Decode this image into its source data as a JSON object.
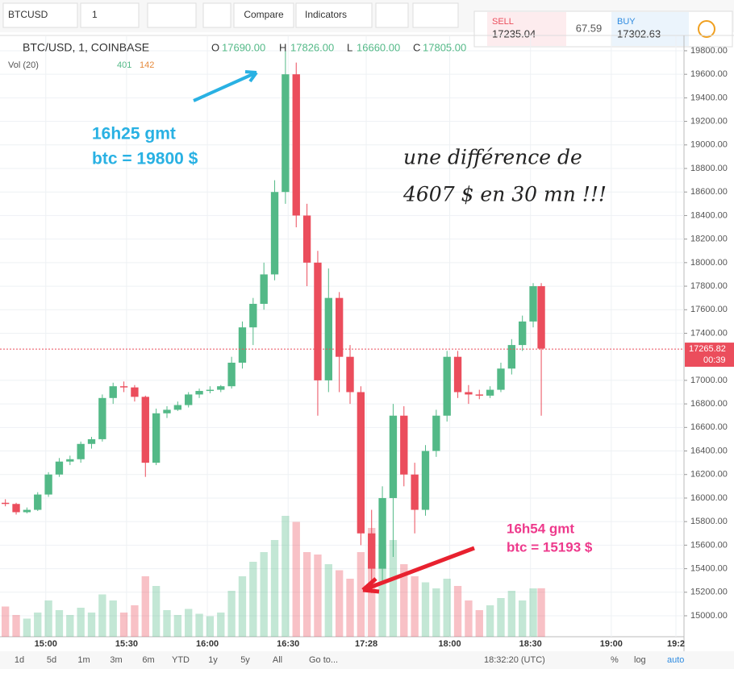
{
  "header": {
    "symbol": "BTCUSD",
    "interval": "1",
    "compare": "Compare",
    "indicators": "Indicators"
  },
  "quote": {
    "sell_label": "SELL",
    "sell": 17235.04,
    "spread": 67.59,
    "buy_label": "BUY",
    "buy": 17302.63
  },
  "legend": {
    "name": "BTC/USD, 1, COINBASE",
    "o": "O",
    "open": "17690.00",
    "h": "H",
    "high": "17826.00",
    "l": "L",
    "low": "16660.00",
    "c": "C",
    "close": "17805.00",
    "vol": "Vol (20)",
    "vol_a": "401",
    "vol_b": "142"
  },
  "annotations": {
    "top_1": "16h25 gmt",
    "top_2": "btc = 19800 $",
    "note_1": "une différence de",
    "note_2": "4607 $ en 30 mn !!!",
    "low_1": "16h54 gmt",
    "low_2": "btc = 15193 $"
  },
  "chart_data": {
    "type": "candlestick",
    "up_color": "#53b987",
    "down_color": "#eb4d5c",
    "grid": true,
    "xlim": [
      883,
      1137
    ],
    "ylim": [
      14822,
      19923
    ],
    "volume_lim": [
      0,
      1100
    ],
    "xticks": [
      {
        "value": 900,
        "label": "15:00"
      },
      {
        "value": 930,
        "label": "15:30"
      },
      {
        "value": 960,
        "label": "16:00"
      },
      {
        "value": 990,
        "label": "16:30"
      },
      {
        "value": 1019,
        "label": "17:28"
      },
      {
        "value": 1050,
        "label": "18:00"
      },
      {
        "value": 1080,
        "label": "18:30"
      },
      {
        "value": 1110,
        "label": "19:00"
      },
      {
        "value": 1134,
        "label": "19:2"
      }
    ],
    "yticks": [
      {
        "value": 15000,
        "label": "15000.00"
      },
      {
        "value": 15200,
        "label": "15200.00"
      },
      {
        "value": 15400,
        "label": "15400.00"
      },
      {
        "value": 15600,
        "label": "15600.00"
      },
      {
        "value": 15800,
        "label": "15800.00"
      },
      {
        "value": 16000,
        "label": "16000.00"
      },
      {
        "value": 16200,
        "label": "16200.00"
      },
      {
        "value": 16400,
        "label": "16400.00"
      },
      {
        "value": 16600,
        "label": "16600.00"
      },
      {
        "value": 16800,
        "label": "16800.00"
      },
      {
        "value": 17000,
        "label": "17000.00"
      },
      {
        "value": 17400,
        "label": "17400.00"
      },
      {
        "value": 17600,
        "label": "17600.00"
      },
      {
        "value": 17800,
        "label": "17800.00"
      },
      {
        "value": 18000,
        "label": "18000.00"
      },
      {
        "value": 18200,
        "label": "18200.00"
      },
      {
        "value": 18400,
        "label": "18400.00"
      },
      {
        "value": 18600,
        "label": "18600.00"
      },
      {
        "value": 18800,
        "label": "18800.00"
      },
      {
        "value": 19000,
        "label": "19000.00"
      },
      {
        "value": 19200,
        "label": "19200.00"
      },
      {
        "value": 19400,
        "label": "19400.00"
      },
      {
        "value": 19600,
        "label": "19600.00"
      },
      {
        "value": 19800,
        "label": "19800.00"
      }
    ],
    "last_price": 17265.82,
    "countdown": "00:39",
    "candles": {
      "x": [
        885,
        889,
        893,
        897,
        901,
        905,
        909,
        913,
        917,
        921,
        925,
        929,
        933,
        937,
        941,
        945,
        949,
        953,
        957,
        961,
        965,
        969,
        973,
        977,
        981,
        985,
        989,
        993,
        997,
        1001,
        1005,
        1009,
        1013,
        1017,
        1021,
        1025,
        1029,
        1033,
        1037,
        1041,
        1045,
        1049,
        1053,
        1057,
        1061,
        1065,
        1069,
        1073,
        1077,
        1081,
        1084
      ],
      "open": [
        15960,
        15950,
        15880,
        15900,
        16030,
        16200,
        16310,
        16330,
        16460,
        16500,
        16850,
        16950,
        16940,
        16860,
        16300,
        16720,
        16750,
        16790,
        16880,
        16910,
        16920,
        16950,
        17150,
        17450,
        17650,
        17900,
        18600,
        19600,
        18400,
        18000,
        17000,
        17700,
        17200,
        16900,
        15700,
        15400,
        16000,
        16700,
        16200,
        15900,
        16400,
        16700,
        17200,
        16900,
        16880,
        16870,
        16920,
        17100,
        17300,
        17500,
        17800
      ],
      "high": [
        15990,
        15960,
        15920,
        16050,
        16220,
        16340,
        16360,
        16480,
        16520,
        16880,
        16980,
        16990,
        16960,
        16870,
        16760,
        16780,
        16820,
        16900,
        16930,
        16950,
        16960,
        17200,
        17500,
        17700,
        18000,
        18700,
        19800,
        19700,
        18500,
        18100,
        17950,
        17750,
        17300,
        16950,
        15900,
        16100,
        16800,
        16780,
        16300,
        16450,
        16750,
        17250,
        17250,
        16960,
        16920,
        16950,
        17150,
        17350,
        17550,
        17826,
        17826
      ],
      "low": [
        15930,
        15860,
        15870,
        15890,
        16010,
        16180,
        16280,
        16300,
        16420,
        16480,
        16800,
        16900,
        16820,
        16180,
        16280,
        16680,
        16740,
        16770,
        16850,
        16890,
        16900,
        16930,
        17100,
        17300,
        17600,
        17850,
        18500,
        18300,
        17800,
        16700,
        16900,
        16900,
        16800,
        15600,
        15193,
        15300,
        15500,
        16100,
        15700,
        15850,
        16350,
        16650,
        16850,
        16800,
        16840,
        16850,
        16900,
        17050,
        17250,
        17450,
        16700
      ],
      "close": [
        15950,
        15880,
        15900,
        16030,
        16200,
        16310,
        16330,
        16460,
        16500,
        16850,
        16950,
        16940,
        16860,
        16300,
        16720,
        16750,
        16790,
        16880,
        16910,
        16920,
        16950,
        17150,
        17450,
        17650,
        17900,
        18600,
        19600,
        18400,
        18000,
        17000,
        17700,
        17200,
        16900,
        15700,
        15400,
        16000,
        16700,
        16200,
        15900,
        16400,
        16700,
        17200,
        16900,
        16880,
        16870,
        16920,
        17100,
        17300,
        17500,
        17800,
        17270
      ],
      "volume": [
        250,
        180,
        150,
        200,
        300,
        220,
        180,
        240,
        200,
        350,
        300,
        200,
        260,
        500,
        420,
        220,
        180,
        230,
        190,
        170,
        200,
        380,
        500,
        620,
        700,
        800,
        1000,
        950,
        700,
        680,
        600,
        550,
        480,
        700,
        900,
        750,
        800,
        600,
        500,
        450,
        400,
        480,
        420,
        300,
        220,
        260,
        320,
        380,
        300,
        400,
        401
      ]
    }
  },
  "footer": {
    "ranges": [
      "1d",
      "5d",
      "1m",
      "3m",
      "6m",
      "YTD",
      "1y",
      "5y",
      "All"
    ],
    "goto": "Go to...",
    "time": "18:32:20 (UTC)",
    "pct": "%",
    "log": "log",
    "auto": "auto"
  }
}
